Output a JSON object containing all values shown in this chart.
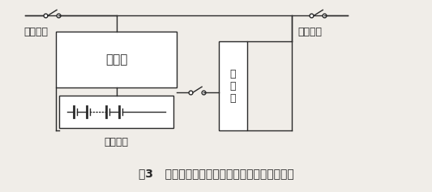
{
  "title": "图3   集中式充电装置实现对串联电池组充电图示",
  "label_ac_in": "交流输入",
  "label_ac_out": "交流输出",
  "label_charger": "充电器",
  "label_inverter": "逆\n变\n器",
  "label_battery": "蓄电池组",
  "bg_color": "#f0ede8",
  "line_color": "#2a2a2a",
  "box_color": "#ffffff",
  "title_fontsize": 10.5,
  "label_fontsize": 9,
  "charger_fontsize": 11,
  "inverter_fontsize": 9,
  "caption_fontsize": 10
}
